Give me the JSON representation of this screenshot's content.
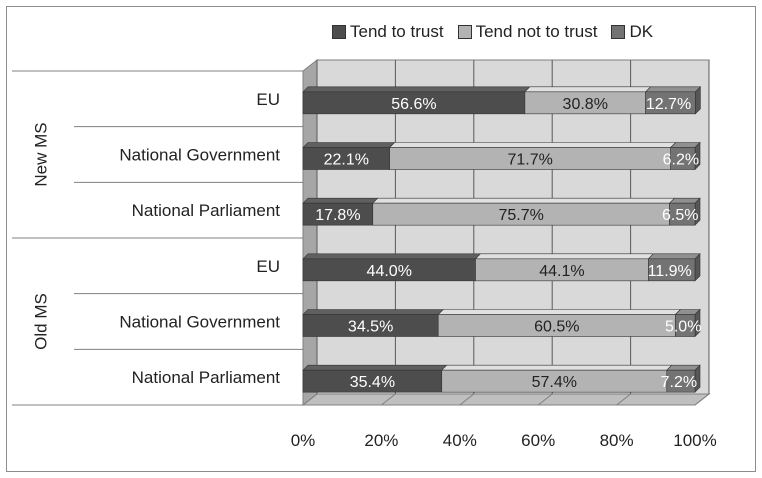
{
  "chart_data": {
    "type": "bar",
    "orientation": "horizontal",
    "stacked": "percent",
    "groups": [
      {
        "label": "New MS",
        "categories": [
          "EU",
          "National Government",
          "National Parliament"
        ]
      },
      {
        "label": "Old MS",
        "categories": [
          "EU",
          "National Government",
          "National Parliament"
        ]
      }
    ],
    "series": [
      {
        "name": "Tend to trust",
        "color": "#4d4d4d",
        "values": [
          56.6,
          22.1,
          17.8,
          44.0,
          34.5,
          35.4
        ],
        "labels": [
          "56.6%",
          "22.1%",
          "17.8%",
          "44.0%",
          "34.5%",
          "35.4%"
        ]
      },
      {
        "name": "Tend not to trust",
        "color": "#b3b3b3",
        "values": [
          30.8,
          71.7,
          75.7,
          44.1,
          60.5,
          57.4
        ],
        "labels": [
          "30.8%",
          "71.7%",
          "75.7%",
          "44.1%",
          "60.5%",
          "57.4%"
        ]
      },
      {
        "name": "DK",
        "color": "#737373",
        "values": [
          12.7,
          6.2,
          6.5,
          11.9,
          5.0,
          7.2
        ],
        "labels": [
          "12.7%",
          "6.2%",
          "6.5%",
          "11.9%",
          "5.0%",
          "7.2%"
        ]
      }
    ],
    "xticks": [
      "0%",
      "20%",
      "40%",
      "60%",
      "80%",
      "100%"
    ],
    "xlim": [
      0,
      100
    ],
    "grid": true,
    "legend_position": "top-right"
  }
}
